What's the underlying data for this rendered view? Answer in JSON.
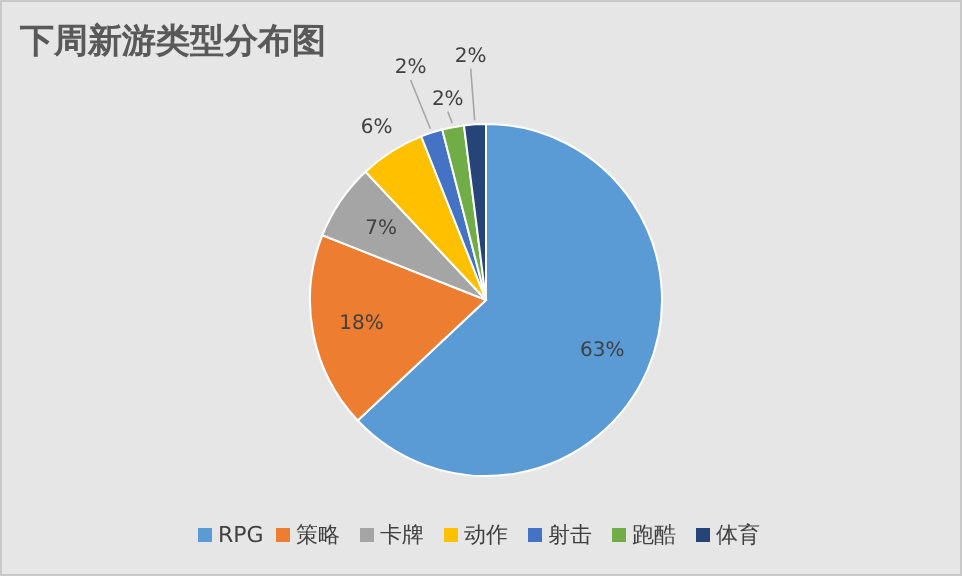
{
  "chart_data": {
    "type": "pie",
    "title": "下周新游类型分布图",
    "categories": [
      "RPG",
      "策略",
      "卡牌",
      "动作",
      "射击",
      "跑酷",
      "体育"
    ],
    "values": [
      63,
      18,
      7,
      6,
      2,
      2,
      2
    ],
    "colors": [
      "#5b9bd5",
      "#ed7d31",
      "#a5a5a5",
      "#ffc000",
      "#4472c4",
      "#70ad47",
      "#264478"
    ],
    "value_labels": [
      "63%",
      "18%",
      "7%",
      "6%",
      "2%",
      "2%",
      "2%"
    ],
    "legend": "bottom"
  }
}
